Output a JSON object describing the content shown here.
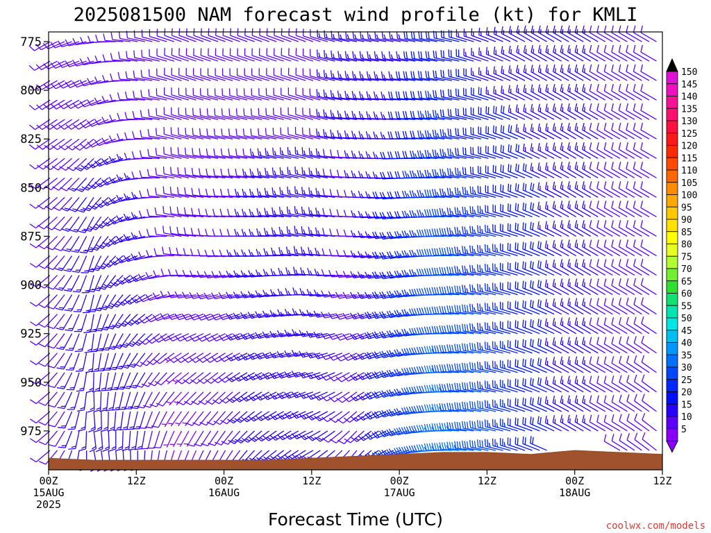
{
  "chart_data": {
    "type": "wind-barb",
    "title": "2025081500 NAM forecast wind profile (kt) for KMLI",
    "xlabel": "Forecast Time (UTC)",
    "ylabel": "",
    "credit": "coolwx.com/models",
    "y_axis": {
      "unit": "hPa",
      "range": [
        770,
        995
      ],
      "ticks": [
        775,
        800,
        825,
        850,
        875,
        900,
        925,
        950,
        975
      ],
      "tick_labels": [
        "775",
        "800",
        "825",
        "850",
        "875",
        "900",
        "925",
        "950",
        "975"
      ]
    },
    "x_axis": {
      "range_hours": [
        0,
        84
      ],
      "ticks": [
        {
          "hour": 0,
          "line1": "00Z",
          "line2": "15AUG",
          "line3": "2025"
        },
        {
          "hour": 12,
          "line1": "12Z",
          "line2": "",
          "line3": ""
        },
        {
          "hour": 24,
          "line1": "00Z",
          "line2": "16AUG",
          "line3": ""
        },
        {
          "hour": 36,
          "line1": "12Z",
          "line2": "",
          "line3": ""
        },
        {
          "hour": 48,
          "line1": "00Z",
          "line2": "17AUG",
          "line3": ""
        },
        {
          "hour": 60,
          "line1": "12Z",
          "line2": "",
          "line3": ""
        },
        {
          "hour": 72,
          "line1": "00Z",
          "line2": "18AUG",
          "line3": ""
        },
        {
          "hour": 84,
          "line1": "12Z",
          "line2": "",
          "line3": ""
        }
      ]
    },
    "colorbar": {
      "labels": [
        "150",
        "145",
        "140",
        "135",
        "130",
        "125",
        "120",
        "115",
        "110",
        "105",
        "100",
        "95",
        "90",
        "85",
        "80",
        "75",
        "70",
        "65",
        "60",
        "55",
        "50",
        "45",
        "40",
        "35",
        "30",
        "25",
        "20",
        "15",
        "10",
        "5"
      ],
      "colors": [
        "#e010d8",
        "#f010c0",
        "#f81098",
        "#ff1070",
        "#ff1040",
        "#ff1818",
        "#ff2a00",
        "#ff4a00",
        "#ff6a00",
        "#ff8c00",
        "#ffa800",
        "#ffc800",
        "#ffe000",
        "#ffff00",
        "#e6ff20",
        "#b0ff30",
        "#70f030",
        "#30e030",
        "#10e070",
        "#00e6b0",
        "#00e6e6",
        "#00c0f0",
        "#0098ff",
        "#0070ff",
        "#0048ff",
        "#0028ff",
        "#0010ff",
        "#2800ff",
        "#5c00ff",
        "#8a00ff"
      ]
    },
    "surface_pressure": [
      {
        "hour": 0,
        "hpa": 989
      },
      {
        "hour": 6,
        "hpa": 990
      },
      {
        "hour": 12,
        "hpa": 990
      },
      {
        "hour": 18,
        "hpa": 990
      },
      {
        "hour": 24,
        "hpa": 990
      },
      {
        "hour": 30,
        "hpa": 990
      },
      {
        "hour": 36,
        "hpa": 989
      },
      {
        "hour": 42,
        "hpa": 988
      },
      {
        "hour": 48,
        "hpa": 987
      },
      {
        "hour": 54,
        "hpa": 986
      },
      {
        "hour": 60,
        "hpa": 986
      },
      {
        "hour": 66,
        "hpa": 987
      },
      {
        "hour": 72,
        "hpa": 985
      },
      {
        "hour": 78,
        "hpa": 986
      },
      {
        "hour": 84,
        "hpa": 987
      }
    ],
    "wind_field": {
      "time_step_hours": 1,
      "levels_hpa": [
        775,
        785,
        795,
        805,
        815,
        825,
        835,
        845,
        855,
        865,
        875,
        885,
        895,
        905,
        915,
        925,
        935,
        945,
        955,
        965,
        975,
        985
      ],
      "key_times": [
        {
          "hour": 0,
          "low_dir": 230,
          "low_spd": 10,
          "mid_dir": 230,
          "mid_spd": 10,
          "up_dir": 240,
          "up_spd": 10
        },
        {
          "hour": 6,
          "low_dir": 170,
          "low_spd": 15,
          "mid_dir": 200,
          "mid_spd": 15,
          "up_dir": 260,
          "up_spd": 10
        },
        {
          "hour": 12,
          "low_dir": 180,
          "low_spd": 15,
          "mid_dir": 250,
          "mid_spd": 15,
          "up_dir": 280,
          "up_spd": 10
        },
        {
          "hour": 18,
          "low_dir": 200,
          "low_spd": 5,
          "mid_dir": 280,
          "mid_spd": 10,
          "up_dir": 290,
          "up_spd": 10
        },
        {
          "hour": 24,
          "low_dir": 210,
          "low_spd": 10,
          "mid_dir": 270,
          "mid_spd": 10,
          "up_dir": 290,
          "up_spd": 10
        },
        {
          "hour": 30,
          "low_dir": 230,
          "low_spd": 15,
          "mid_dir": 270,
          "mid_spd": 15,
          "up_dir": 290,
          "up_spd": 10
        },
        {
          "hour": 36,
          "low_dir": 240,
          "low_spd": 15,
          "mid_dir": 280,
          "mid_spd": 15,
          "up_dir": 290,
          "up_spd": 10
        },
        {
          "hour": 42,
          "low_dir": 220,
          "low_spd": 10,
          "mid_dir": 270,
          "mid_spd": 10,
          "up_dir": 280,
          "up_spd": 15
        },
        {
          "hour": 48,
          "low_dir": 250,
          "low_spd": 25,
          "mid_dir": 260,
          "mid_spd": 20,
          "up_dir": 280,
          "up_spd": 15
        },
        {
          "hour": 54,
          "low_dir": 270,
          "low_spd": 35,
          "mid_dir": 270,
          "mid_spd": 30,
          "up_dir": 280,
          "up_spd": 20
        },
        {
          "hour": 60,
          "low_dir": 280,
          "low_spd": 30,
          "mid_dir": 280,
          "mid_spd": 25,
          "up_dir": 290,
          "up_spd": 15
        },
        {
          "hour": 66,
          "low_dir": 290,
          "low_spd": 20,
          "mid_dir": 290,
          "mid_spd": 20,
          "up_dir": 300,
          "up_spd": 15
        },
        {
          "hour": 72,
          "low_dir": 300,
          "low_spd": 15,
          "mid_dir": 300,
          "mid_spd": 15,
          "up_dir": 300,
          "up_spd": 15
        },
        {
          "hour": 78,
          "low_dir": 300,
          "low_spd": 10,
          "mid_dir": 300,
          "mid_spd": 10,
          "up_dir": 300,
          "up_spd": 10
        },
        {
          "hour": 84,
          "low_dir": 310,
          "low_spd": 10,
          "mid_dir": 300,
          "mid_spd": 10,
          "up_dir": 300,
          "up_spd": 10
        }
      ]
    },
    "grid": false,
    "legend": "colorbar-right"
  }
}
